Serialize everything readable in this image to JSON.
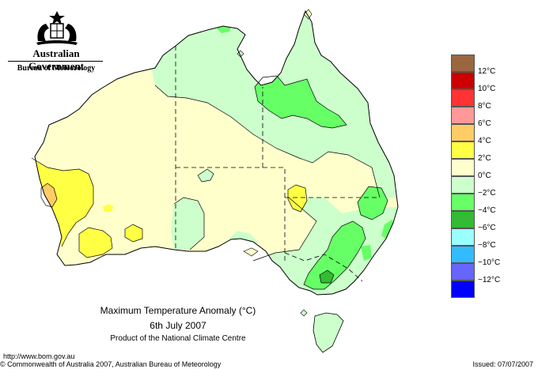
{
  "header": {
    "org_name": "Australian Government",
    "bureau": "Bureau of Meteorology"
  },
  "legend": {
    "items": [
      {
        "label": "",
        "color": "#99663f"
      },
      {
        "label": "12°C",
        "color": "#cc0000"
      },
      {
        "label": "10°C",
        "color": "#ff3333"
      },
      {
        "label": "8°C",
        "color": "#ff9999"
      },
      {
        "label": "6°C",
        "color": "#ffcc66"
      },
      {
        "label": "4°C",
        "color": "#ffff44"
      },
      {
        "label": "2°C",
        "color": "#ffffcc"
      },
      {
        "label": "0°C",
        "color": "#ccffcc"
      },
      {
        "label": "−2°C",
        "color": "#66ff66"
      },
      {
        "label": "−4°C",
        "color": "#33bb33"
      },
      {
        "label": "−6°C",
        "color": "#99ffff"
      },
      {
        "label": "−8°C",
        "color": "#33bbff"
      },
      {
        "label": "−10°C",
        "color": "#6666ff"
      },
      {
        "label": "−12°C",
        "color": "#0000ff"
      }
    ]
  },
  "map": {
    "colors": {
      "land_pale_yellow": "#ffffcc",
      "land_pale_green": "#ccffcc",
      "yellow": "#ffff44",
      "orange": "#ffcc66",
      "green": "#66ff66",
      "dark_green": "#33bb33",
      "outline": "#000000"
    }
  },
  "caption": {
    "title": "Maximum Temperature Anomaly (°C)",
    "date": "6th July 2007",
    "product": "Product of the National Climate Centre"
  },
  "footer": {
    "url": "http://www.bom.gov.au",
    "copyright": "© Commonwealth of Australia 2007, Australian Bureau of Meteorology",
    "issued": "Issued: 07/07/2007"
  }
}
